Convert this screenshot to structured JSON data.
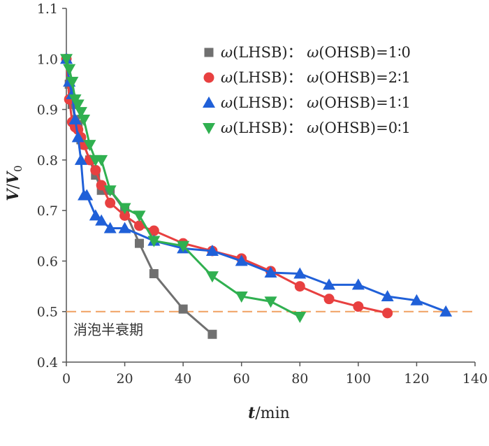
{
  "chart_data": {
    "type": "line",
    "xlabel": {
      "var": "t",
      "unit": "/min"
    },
    "ylabel": {
      "var": "V",
      "sep": "/",
      "var2": "V",
      "sub": "0"
    },
    "xlim": [
      0,
      140
    ],
    "ylim": [
      0.4,
      1.1
    ],
    "xticks": [
      "0",
      "20",
      "40",
      "60",
      "80",
      "100",
      "120",
      "140"
    ],
    "yticks": [
      "0.4",
      "0.5",
      "0.6",
      "0.7",
      "0.8",
      "0.9",
      "1.0",
      "1.1"
    ],
    "grid": false,
    "legend_position": "top-right",
    "reference_line": {
      "y": 0.5,
      "label": "消泡半衰期",
      "color": "#f0a060"
    },
    "series": [
      {
        "name": "ω(LHSB)： ω(OHSB)=1∶0",
        "legend_parts": [
          "ω",
          "(LHSB)： ",
          "ω",
          "(OHSB)=1∶0"
        ],
        "marker": "square",
        "color": "#707070",
        "x": [
          0,
          1,
          2,
          3,
          4,
          5,
          6,
          8,
          10,
          12,
          15,
          20,
          25,
          30,
          40,
          50
        ],
        "y": [
          1.0,
          0.95,
          0.91,
          0.88,
          0.87,
          0.84,
          0.83,
          0.8,
          0.77,
          0.74,
          0.74,
          0.7,
          0.635,
          0.575,
          0.505,
          0.455
        ]
      },
      {
        "name": "ω(LHSB)： ω(OHSB)=2∶1",
        "legend_parts": [
          "ω",
          "(LHSB)： ",
          "ω",
          "(OHSB)=2∶1"
        ],
        "marker": "circle",
        "color": "#e84040",
        "x": [
          0,
          1,
          2,
          3,
          4,
          5,
          6,
          8,
          10,
          12,
          15,
          20,
          25,
          30,
          40,
          50,
          60,
          70,
          80,
          90,
          100,
          110
        ],
        "y": [
          1.0,
          0.92,
          0.875,
          0.865,
          0.86,
          0.845,
          0.83,
          0.8,
          0.78,
          0.75,
          0.715,
          0.69,
          0.67,
          0.66,
          0.635,
          0.62,
          0.605,
          0.58,
          0.55,
          0.525,
          0.51,
          0.497
        ]
      },
      {
        "name": "ω(LHSB)： ω(OHSB)=1∶1",
        "legend_parts": [
          "ω",
          "(LHSB)： ",
          "ω",
          "(OHSB)=1∶1"
        ],
        "marker": "triangle-up",
        "color": "#2060d8",
        "x": [
          0,
          1,
          2,
          3,
          4,
          5,
          6,
          7,
          10,
          12,
          15,
          20,
          30,
          40,
          50,
          60,
          70,
          80,
          90,
          100,
          110,
          120,
          130
        ],
        "y": [
          1.0,
          0.955,
          0.93,
          0.88,
          0.845,
          0.8,
          0.73,
          0.73,
          0.69,
          0.68,
          0.665,
          0.665,
          0.64,
          0.625,
          0.62,
          0.6,
          0.577,
          0.575,
          0.553,
          0.553,
          0.53,
          0.522,
          0.5
        ]
      },
      {
        "name": "ω(LHSB)： ω(OHSB)=0∶1",
        "legend_parts": [
          "ω",
          "(LHSB)： ",
          "ω",
          "(OHSB)=0∶1"
        ],
        "marker": "triangle-down",
        "color": "#30b050",
        "x": [
          0,
          1,
          2,
          3,
          4,
          5,
          6,
          8,
          10,
          12,
          15,
          20,
          25,
          30,
          40,
          50,
          60,
          70,
          80
        ],
        "y": [
          1.0,
          0.98,
          0.955,
          0.92,
          0.91,
          0.895,
          0.88,
          0.83,
          0.8,
          0.8,
          0.74,
          0.705,
          0.69,
          0.64,
          0.63,
          0.57,
          0.53,
          0.52,
          0.49
        ]
      }
    ]
  }
}
